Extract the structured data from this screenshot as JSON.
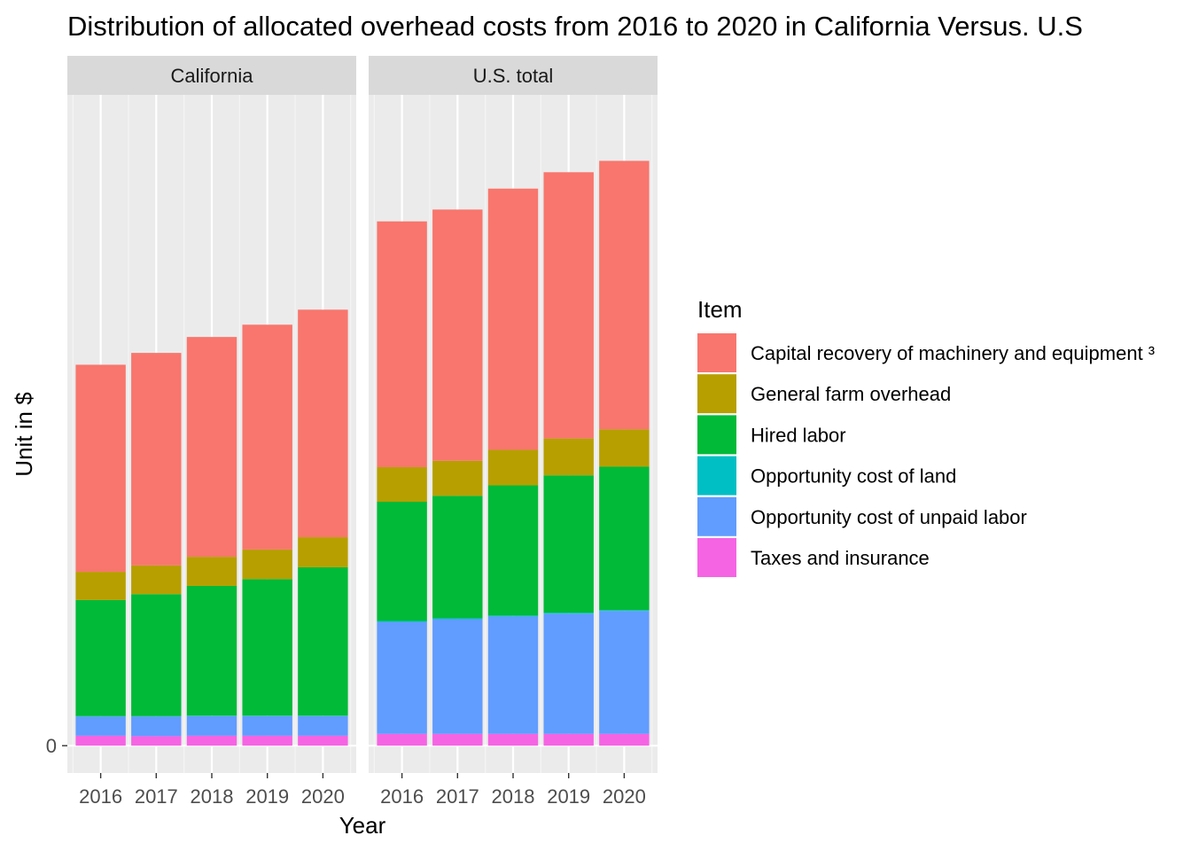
{
  "chart_data": {
    "type": "bar",
    "stacked": true,
    "title": "Distribution of allocated overhead costs from 2016 to 2020 in California Versus. U.S",
    "xlabel": "Year",
    "ylabel": "Unit in $",
    "y_ticks": [
      0
    ],
    "y_tick_labels": [
      "0"
    ],
    "ylim": [
      -60,
      1430
    ],
    "grid": true,
    "legend": {
      "title": "Item",
      "position": "right"
    },
    "categories": [
      "2016",
      "2017",
      "2018",
      "2019",
      "2020"
    ],
    "series_order": [
      "Capital recovery of machinery and equipment ³",
      "General farm overhead",
      "Hired labor",
      "Opportunity cost of land",
      "Opportunity cost of unpaid labor",
      "Taxes and insurance"
    ],
    "colors": {
      "Capital recovery of machinery and equipment ³": "#F8766D",
      "General farm overhead": "#B79F00",
      "Hired labor": "#00BA38",
      "Opportunity cost of land": "#00BFC4",
      "Opportunity cost of unpaid labor": "#619CFF",
      "Taxes and insurance": "#F564E3"
    },
    "panels": [
      {
        "label": "California",
        "series": [
          {
            "name": "Taxes and insurance",
            "values": [
              22,
              21,
              22,
              22,
              22
            ]
          },
          {
            "name": "Opportunity cost of unpaid labor",
            "values": [
              42,
              43,
              43,
              43,
              43
            ]
          },
          {
            "name": "Opportunity cost of land",
            "values": [
              1,
              1,
              1,
              1,
              1
            ]
          },
          {
            "name": "Hired labor",
            "values": [
              255,
              268,
              285,
              300,
              326
            ]
          },
          {
            "name": "General farm overhead",
            "values": [
              62,
              63,
              64,
              65,
              66
            ]
          },
          {
            "name": "Capital recovery of machinery and equipment ³",
            "values": [
              455,
              467,
              483,
              494,
              500
            ]
          }
        ]
      },
      {
        "label": "U.S. total",
        "series": [
          {
            "name": "Taxes and insurance",
            "values": [
              26,
              26,
              26,
              26,
              26
            ]
          },
          {
            "name": "Opportunity cost of unpaid labor",
            "values": [
              246,
              252,
              258,
              264,
              270
            ]
          },
          {
            "name": "Opportunity cost of land",
            "values": [
              2,
              2,
              2,
              2,
              2
            ]
          },
          {
            "name": "Hired labor",
            "values": [
              262,
              269,
              286,
              302,
              315
            ]
          },
          {
            "name": "General farm overhead",
            "values": [
              76,
              77,
              78,
              81,
              82
            ]
          },
          {
            "name": "Capital recovery of machinery and equipment ³",
            "values": [
              540,
              552,
              574,
              585,
              590
            ]
          }
        ]
      }
    ]
  }
}
